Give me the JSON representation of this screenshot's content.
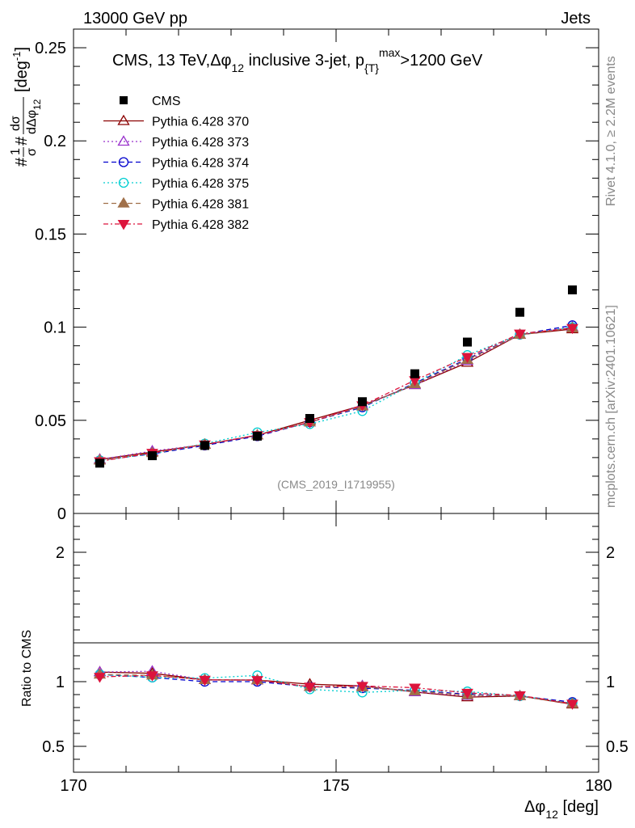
{
  "header": {
    "left": "13000 GeV pp",
    "right": "Jets"
  },
  "side": {
    "rivet": "Rivet 4.1.0, ≥ 2.2M events",
    "mcplots": "mcplots.cern.ch [arXiv:2401.10621]"
  },
  "chart_data": {
    "type": "scatter",
    "title": "CMS, 13 TeV, Δφ12 inclusive 3-jet, p{T}max>1200 GeV",
    "title_parts": {
      "a": "CMS, 13 TeV,",
      "b": "Δφ",
      "b_sub": "12",
      "c": " inclusive 3-jet, p",
      "c_sub": "{T}",
      "c_sup": "max",
      "d": ">1200 GeV"
    },
    "watermark": "(CMS_2019_I1719955)",
    "xlabel": "Δφ",
    "xlabel_sub": "12",
    "xlabel_unit": " [deg]",
    "ylabel_top": "#1/σ#dσ/dΔφ12 [deg-1]",
    "ylabel_parts": {
      "hash1": "#",
      "one": "1",
      "sigma": "σ",
      "hash2": "#",
      "dsigma": "dσ",
      "dphi": "dΔφ",
      "dphi_sub": "12",
      "unit": "[deg",
      "unit_sup": "-1",
      "unit_close": "]"
    },
    "ylabel_bottom": "Ratio to CMS",
    "xlim": [
      170,
      180
    ],
    "ylim_top": [
      0,
      0.26
    ],
    "ylim_bottom": [
      0.3,
      2.3
    ],
    "x_ticks": [
      "170",
      "175",
      "180"
    ],
    "x_tick_values": [
      170,
      175,
      180
    ],
    "y_ticks_top": [
      "0",
      "0.05",
      "0.1",
      "0.15",
      "0.2",
      "0.25"
    ],
    "y_tick_values_top": [
      0,
      0.05,
      0.1,
      0.15,
      0.2,
      0.25
    ],
    "y_ticks_bottom": [
      "0.5",
      "1",
      "2"
    ],
    "y_tick_values_bottom": [
      0.5,
      1,
      2
    ],
    "x": [
      170.5,
      171.5,
      172.5,
      173.5,
      174.5,
      175.5,
      176.5,
      177.5,
      178.5,
      179.5
    ],
    "series": [
      {
        "name": "CMS",
        "color": "#000000",
        "marker": "square-filled",
        "line": "none",
        "values": [
          0.027,
          0.031,
          0.0365,
          0.0415,
          0.051,
          0.06,
          0.075,
          0.092,
          0.108,
          0.12
        ]
      },
      {
        "name": "Pythia 6.428 370",
        "color": "#8b0000",
        "marker": "triangle-up-open",
        "line": "solid",
        "values": [
          0.029,
          0.033,
          0.037,
          0.042,
          0.05,
          0.058,
          0.069,
          0.081,
          0.096,
          0.099
        ]
      },
      {
        "name": "Pythia 6.428 373",
        "color": "#9932cc",
        "marker": "triangle-up-open",
        "line": "dotted",
        "values": [
          0.029,
          0.0335,
          0.037,
          0.042,
          0.049,
          0.058,
          0.069,
          0.082,
          0.096,
          0.1
        ]
      },
      {
        "name": "Pythia 6.428 374",
        "color": "#0000cd",
        "marker": "circle-open",
        "line": "dashed",
        "values": [
          0.0285,
          0.032,
          0.0365,
          0.0415,
          0.049,
          0.057,
          0.07,
          0.083,
          0.096,
          0.101
        ]
      },
      {
        "name": "Pythia 6.428 375",
        "color": "#00ced1",
        "marker": "circle-open",
        "line": "dotted",
        "values": [
          0.0285,
          0.032,
          0.0375,
          0.0435,
          0.048,
          0.055,
          0.07,
          0.085,
          0.096,
          0.1
        ]
      },
      {
        "name": "Pythia 6.428 381",
        "color": "#a0704a",
        "marker": "triangle-up-filled",
        "line": "dashed",
        "values": [
          0.0285,
          0.0325,
          0.037,
          0.042,
          0.049,
          0.0575,
          0.0695,
          0.0825,
          0.096,
          0.0995
        ]
      },
      {
        "name": "Pythia 6.428 382",
        "color": "#dc143c",
        "marker": "triangle-down-filled",
        "line": "dashdot",
        "values": [
          0.028,
          0.0325,
          0.037,
          0.042,
          0.049,
          0.058,
          0.0715,
          0.084,
          0.0965,
          0.0995
        ]
      }
    ]
  }
}
